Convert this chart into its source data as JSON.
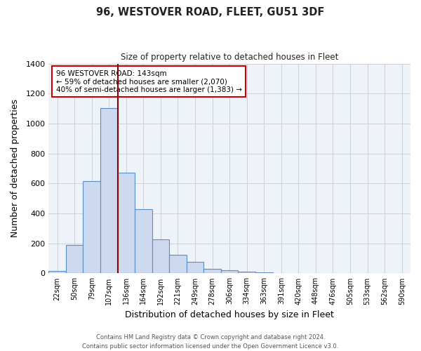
{
  "title": "96, WESTOVER ROAD, FLEET, GU51 3DF",
  "subtitle": "Size of property relative to detached houses in Fleet",
  "xlabel": "Distribution of detached houses by size in Fleet",
  "ylabel": "Number of detached properties",
  "bar_color": "#ccd9ee",
  "bar_edge_color": "#5b8ec5",
  "categories": [
    "22sqm",
    "50sqm",
    "79sqm",
    "107sqm",
    "136sqm",
    "164sqm",
    "192sqm",
    "221sqm",
    "249sqm",
    "278sqm",
    "306sqm",
    "334sqm",
    "363sqm",
    "391sqm",
    "420sqm",
    "448sqm",
    "476sqm",
    "505sqm",
    "533sqm",
    "562sqm",
    "590sqm"
  ],
  "values": [
    15,
    190,
    615,
    1105,
    670,
    430,
    225,
    125,
    75,
    30,
    22,
    10,
    5,
    2,
    1,
    0,
    0,
    0,
    0,
    0,
    0
  ],
  "ylim": [
    0,
    1400
  ],
  "yticks": [
    0,
    200,
    400,
    600,
    800,
    1000,
    1200,
    1400
  ],
  "vline_x_idx": 3.5,
  "vline_color": "#8b0000",
  "annotation_line1": "96 WESTOVER ROAD: 143sqm",
  "annotation_line2": "← 59% of detached houses are smaller (2,070)",
  "annotation_line3": "40% of semi-detached houses are larger (1,383) →",
  "annotation_box_color": "#ffffff",
  "annotation_box_edge_color": "#cc0000",
  "footer_line1": "Contains HM Land Registry data © Crown copyright and database right 2024.",
  "footer_line2": "Contains public sector information licensed under the Open Government Licence v3.0.",
  "background_color": "#ffffff",
  "grid_color": "#d0d0d0"
}
